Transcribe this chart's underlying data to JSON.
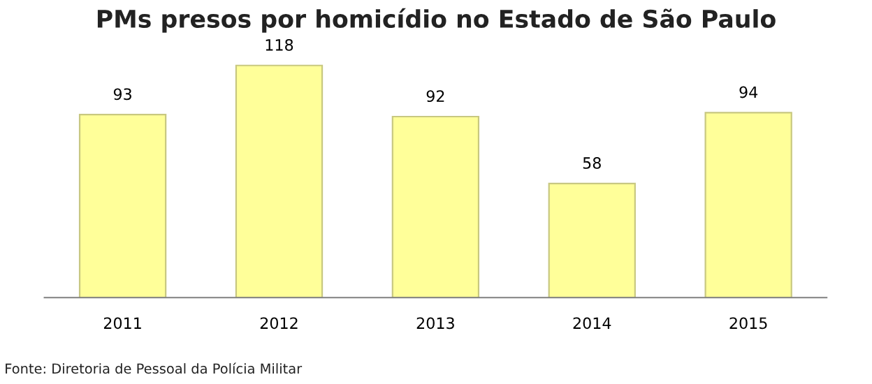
{
  "chart_data": {
    "type": "bar",
    "title": "PMs presos por homicídio no Estado de São Paulo",
    "categories": [
      "2011",
      "2012",
      "2013",
      "2014",
      "2015"
    ],
    "values": [
      93,
      118,
      92,
      58,
      94
    ],
    "color": "#ffff99",
    "data_labels": true,
    "grid": false,
    "legend": false,
    "tick_labels": "x",
    "annotations": [
      "Fonte: Diretoria de Pessoal da Polícia Militar"
    ]
  }
}
